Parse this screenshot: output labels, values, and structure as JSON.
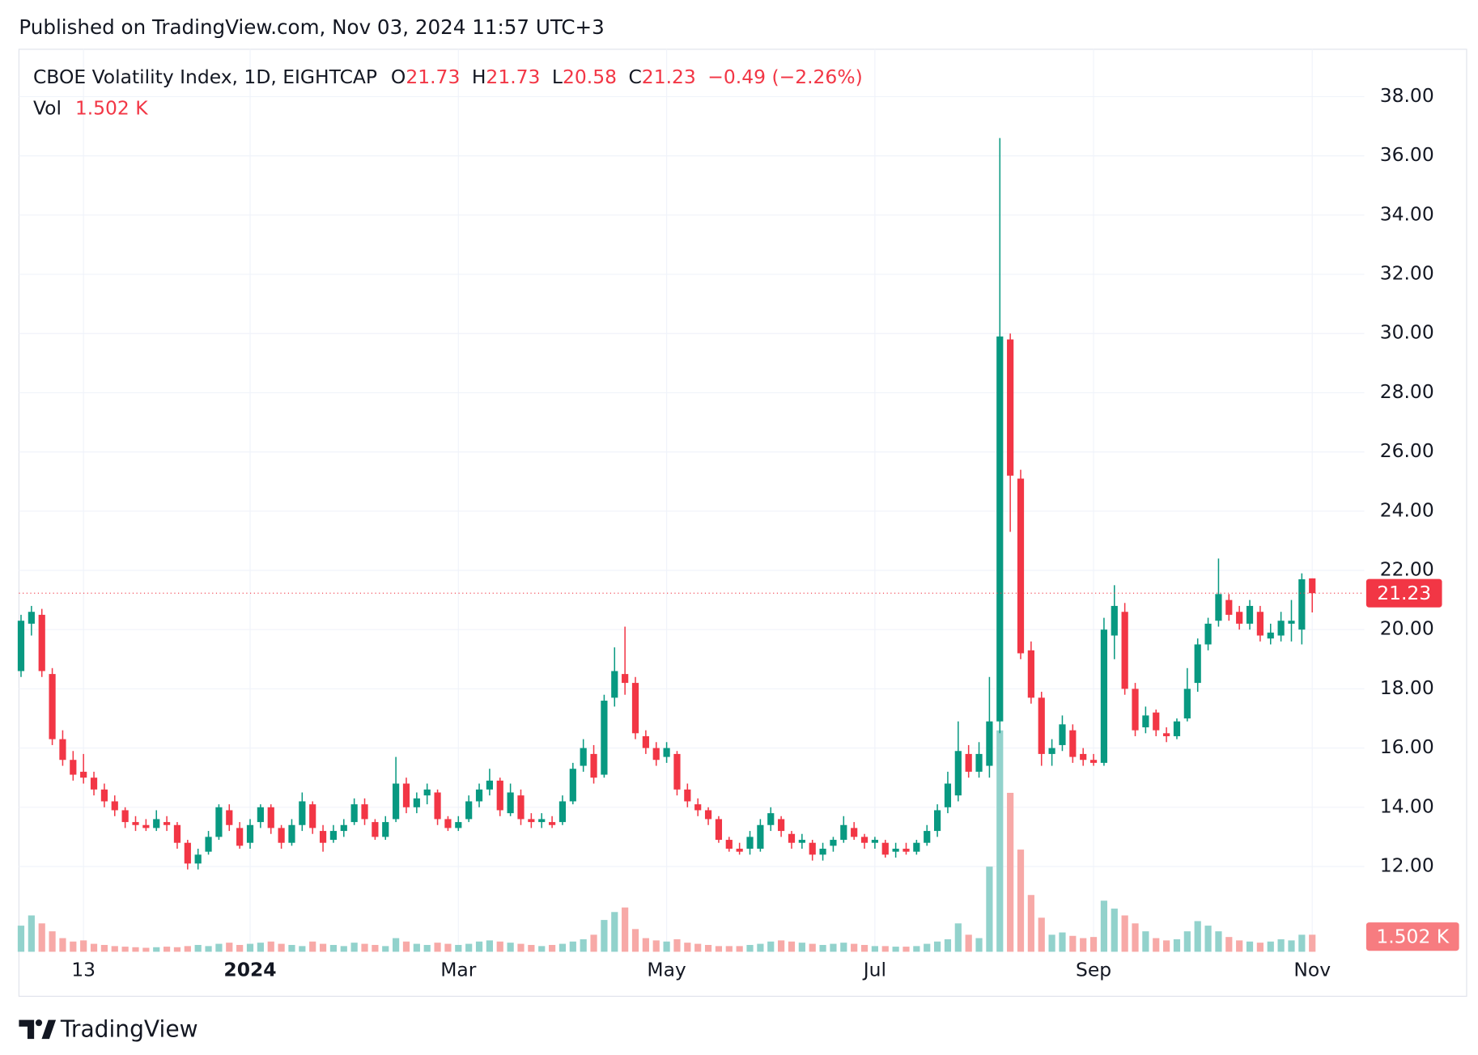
{
  "header": {
    "published": "Published on TradingView.com, Nov 03, 2024 11:57 UTC+3"
  },
  "footer": {
    "brand": "TradingView"
  },
  "chart_data": {
    "type": "candlestick",
    "title": "CBOE Volatility Index, 1D, EIGHTCAP",
    "legend_labels": [
      "O",
      "H",
      "L",
      "C"
    ],
    "change_text": "−0.49 (−2.26%)",
    "volume_name": "Vol",
    "volume_last_label": "1.502 K",
    "up_color": "#089981",
    "down_color": "#f23645",
    "volume_up_color": "#92d2cc",
    "volume_down_color": "#f7a9a7",
    "grid": true,
    "xlim": [
      -0.2,
      129.0
    ],
    "xticks": [
      {
        "value": 6,
        "label": "13"
      },
      {
        "value": 22,
        "label": "2024"
      },
      {
        "value": 42,
        "label": "Mar"
      },
      {
        "value": 62,
        "label": "May"
      },
      {
        "value": 82,
        "label": "Jul"
      },
      {
        "value": 103,
        "label": "Sep"
      },
      {
        "value": 124,
        "label": "Nov"
      }
    ],
    "ylim": [
      9.12,
      39.6
    ],
    "yticks": [
      {
        "value": 12,
        "label": "12.00"
      },
      {
        "value": 14,
        "label": "14.00"
      },
      {
        "value": 16,
        "label": "16.00"
      },
      {
        "value": 18,
        "label": "18.00"
      },
      {
        "value": 20,
        "label": "20.00"
      },
      {
        "value": 22,
        "label": "22.00"
      },
      {
        "value": 24,
        "label": "24.00"
      },
      {
        "value": 26,
        "label": "26.00"
      },
      {
        "value": 28,
        "label": "28.00"
      },
      {
        "value": 30,
        "label": "30.00"
      },
      {
        "value": 32,
        "label": "32.00"
      },
      {
        "value": 34,
        "label": "34.00"
      },
      {
        "value": 36,
        "label": "36.00"
      },
      {
        "value": 38,
        "label": "38.00"
      }
    ],
    "y2lim": [
      0,
      79500
    ],
    "open": [
      18.6,
      20.2,
      20.5,
      18.5,
      16.3,
      15.6,
      15.2,
      15.0,
      14.6,
      14.2,
      13.9,
      13.5,
      13.4,
      13.3,
      13.5,
      13.4,
      12.8,
      12.1,
      12.5,
      13.0,
      13.9,
      13.3,
      12.8,
      13.5,
      14.0,
      13.3,
      12.8,
      13.4,
      14.1,
      13.2,
      12.9,
      13.2,
      13.5,
      14.1,
      13.5,
      13.0,
      13.6,
      14.8,
      14.0,
      14.4,
      14.5,
      13.6,
      13.3,
      13.6,
      14.2,
      14.6,
      14.9,
      13.8,
      14.4,
      13.6,
      13.5,
      13.5,
      13.5,
      14.2,
      15.4,
      15.8,
      15.1,
      17.7,
      18.5,
      18.2,
      16.4,
      16.0,
      15.7,
      15.8,
      14.6,
      14.1,
      13.9,
      13.6,
      12.9,
      12.6,
      12.6,
      12.6,
      13.4,
      13.6,
      13.1,
      12.8,
      12.8,
      12.4,
      12.7,
      12.9,
      13.3,
      13.0,
      12.8,
      12.8,
      12.5,
      12.6,
      12.5,
      12.8,
      13.2,
      14.0,
      14.4,
      15.8,
      15.2,
      15.4,
      16.9,
      29.8,
      25.1,
      19.3,
      17.7,
      15.8,
      16.1,
      16.6,
      15.8,
      15.6,
      15.5,
      19.8,
      20.6,
      18.0,
      16.7,
      17.2,
      16.5,
      16.4,
      17.0,
      18.2,
      19.5,
      20.3,
      21.0,
      20.6,
      20.2,
      20.6,
      19.7,
      19.8,
      20.2,
      20.0,
      21.73
    ],
    "high": [
      20.5,
      20.8,
      20.7,
      18.7,
      16.6,
      15.9,
      15.8,
      15.2,
      14.8,
      14.4,
      14.0,
      13.7,
      13.6,
      13.9,
      13.7,
      13.5,
      12.9,
      12.6,
      13.2,
      14.1,
      14.1,
      13.5,
      13.6,
      14.1,
      14.1,
      13.4,
      13.6,
      14.5,
      14.2,
      13.4,
      13.4,
      13.6,
      14.3,
      14.3,
      13.6,
      13.7,
      15.7,
      15.0,
      14.5,
      14.8,
      14.6,
      13.7,
      13.7,
      14.4,
      14.8,
      15.3,
      15.0,
      14.8,
      14.6,
      13.8,
      13.8,
      13.7,
      14.4,
      15.5,
      16.3,
      16.1,
      17.8,
      19.4,
      20.1,
      18.4,
      16.6,
      16.2,
      16.2,
      15.9,
      14.8,
      14.3,
      14.0,
      13.7,
      13.0,
      12.8,
      13.2,
      13.6,
      14.0,
      13.7,
      13.2,
      13.1,
      12.9,
      12.8,
      13.0,
      13.7,
      13.5,
      13.1,
      13.0,
      12.9,
      12.8,
      12.8,
      12.9,
      13.4,
      14.1,
      15.2,
      16.9,
      16.1,
      16.2,
      18.4,
      36.6,
      30.0,
      25.4,
      19.6,
      17.9,
      16.3,
      17.1,
      16.8,
      16.0,
      15.8,
      20.4,
      21.5,
      20.9,
      18.2,
      17.4,
      17.3,
      16.7,
      17.0,
      18.7,
      19.7,
      20.4,
      22.4,
      21.2,
      20.8,
      21.0,
      20.8,
      20.2,
      20.6,
      21.0,
      21.9,
      21.73
    ],
    "low": [
      18.4,
      19.8,
      18.4,
      16.1,
      15.4,
      14.9,
      14.8,
      14.4,
      14.0,
      13.7,
      13.3,
      13.2,
      13.2,
      13.2,
      13.2,
      12.6,
      11.9,
      11.9,
      12.4,
      12.9,
      13.2,
      12.6,
      12.6,
      13.3,
      13.1,
      12.6,
      12.7,
      13.2,
      13.1,
      12.5,
      12.8,
      13.0,
      13.4,
      13.4,
      12.9,
      12.9,
      13.5,
      13.8,
      13.8,
      14.1,
      13.4,
      13.2,
      13.2,
      13.5,
      14.0,
      14.4,
      13.7,
      13.7,
      13.4,
      13.3,
      13.3,
      13.3,
      13.4,
      14.1,
      15.2,
      14.8,
      15.0,
      17.4,
      17.8,
      16.3,
      15.8,
      15.4,
      15.5,
      14.4,
      14.0,
      13.7,
      13.4,
      12.8,
      12.5,
      12.4,
      12.4,
      12.5,
      13.2,
      13.0,
      12.6,
      12.6,
      12.2,
      12.2,
      12.5,
      12.8,
      12.9,
      12.6,
      12.6,
      12.3,
      12.3,
      12.4,
      12.4,
      12.7,
      13.0,
      13.8,
      14.2,
      15.0,
      15.0,
      15.0,
      16.5,
      23.3,
      19.0,
      17.5,
      15.4,
      15.4,
      15.9,
      15.5,
      15.4,
      15.4,
      15.4,
      19.0,
      17.8,
      16.4,
      16.5,
      16.4,
      16.2,
      16.3,
      16.9,
      17.9,
      19.3,
      20.1,
      20.3,
      20.0,
      20.0,
      19.6,
      19.5,
      19.6,
      19.6,
      19.5,
      20.58
    ],
    "close": [
      20.3,
      20.6,
      18.6,
      16.3,
      15.6,
      15.1,
      15.0,
      14.6,
      14.2,
      13.9,
      13.5,
      13.4,
      13.3,
      13.6,
      13.4,
      12.8,
      12.1,
      12.4,
      13.0,
      14.0,
      13.4,
      12.7,
      13.4,
      14.0,
      13.3,
      12.8,
      13.4,
      14.2,
      13.3,
      12.8,
      13.2,
      13.4,
      14.1,
      13.6,
      13.0,
      13.5,
      14.8,
      14.0,
      14.3,
      14.6,
      13.6,
      13.3,
      13.5,
      14.2,
      14.6,
      14.9,
      13.9,
      14.5,
      13.6,
      13.5,
      13.6,
      13.4,
      14.2,
      15.3,
      16.0,
      15.0,
      17.6,
      18.6,
      18.2,
      16.5,
      16.0,
      15.6,
      16.0,
      14.6,
      14.2,
      13.9,
      13.6,
      12.9,
      12.6,
      12.5,
      13.0,
      13.4,
      13.8,
      13.2,
      12.8,
      12.9,
      12.4,
      12.6,
      12.9,
      13.4,
      13.0,
      12.8,
      12.9,
      12.4,
      12.6,
      12.5,
      12.8,
      13.2,
      13.9,
      14.8,
      15.9,
      15.2,
      15.8,
      16.9,
      29.9,
      25.2,
      19.2,
      17.7,
      15.8,
      16.0,
      16.8,
      15.7,
      15.6,
      15.5,
      20.0,
      20.8,
      18.0,
      16.6,
      17.1,
      16.6,
      16.4,
      16.9,
      18.0,
      19.5,
      20.2,
      21.2,
      20.5,
      20.2,
      20.8,
      19.8,
      19.9,
      20.3,
      20.3,
      21.7,
      21.23
    ],
    "volume": [
      2300,
      3200,
      2500,
      1800,
      1200,
      900,
      1000,
      700,
      600,
      500,
      450,
      400,
      350,
      400,
      450,
      400,
      500,
      600,
      500,
      700,
      800,
      600,
      700,
      800,
      900,
      700,
      600,
      500,
      900,
      700,
      600,
      500,
      800,
      700,
      600,
      500,
      1200,
      900,
      700,
      600,
      800,
      700,
      600,
      700,
      900,
      1000,
      900,
      800,
      700,
      600,
      500,
      600,
      700,
      900,
      1100,
      1500,
      2800,
      3500,
      3900,
      2000,
      1200,
      1000,
      900,
      1100,
      800,
      700,
      600,
      500,
      500,
      500,
      600,
      700,
      900,
      1000,
      900,
      800,
      700,
      600,
      700,
      800,
      700,
      600,
      500,
      500,
      450,
      450,
      500,
      700,
      900,
      1100,
      2500,
      1500,
      1200,
      7500,
      19500,
      14000,
      9000,
      5000,
      3000,
      1500,
      1700,
      1400,
      1200,
      1300,
      4500,
      3800,
      3200,
      2500,
      1800,
      1200,
      1000,
      1100,
      1800,
      2700,
      2300,
      1800,
      1300,
      1000,
      900,
      800,
      900,
      1100,
      1000,
      1500,
      1502
    ]
  }
}
